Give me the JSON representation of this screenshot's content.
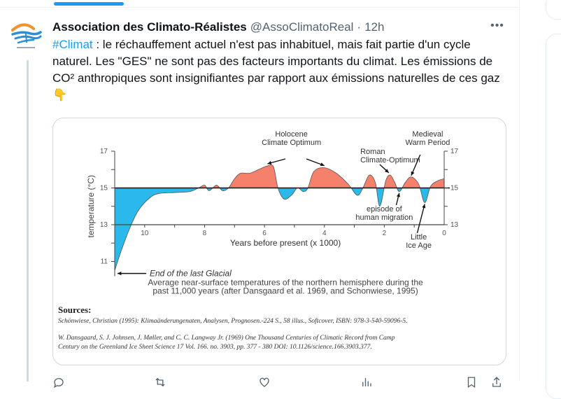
{
  "tweet": {
    "author_name": "Association des Climato-Réalistes",
    "handle": "@AssoClimatoReal",
    "separator": "·",
    "time": "12h",
    "more_label": "•••",
    "hashtag": "#Climat",
    "text_after_hashtag": " : le réchauffement actuel n'est pas inhabituel, mais fait partie d'un cycle naturel. Les \"GES\" ne sont pas des facteurs importants du climat. Les émissions de CO² anthropiques sont insignifiantes par rapport aux émissions naturelles de ces gaz",
    "emoji": "👇",
    "avatar_icon": "wave-sun-logo"
  },
  "colors": {
    "accent": "#1d9bf0",
    "warm_fill": "#f5806b",
    "cold_fill": "#2bb8ea",
    "text_secondary": "#536471"
  },
  "chart_data": {
    "type": "area",
    "title": "Average near-surface temperatures of the northern hemisphere during the past 11,000 years (after Dansgaard et al. 1969, and Schonwiese, 1995)",
    "caption_lines": [
      "Average near-surface temperatures of the northern hemisphere during the",
      "past 11,000 years (after Dansgaard et al. 1969, and Schonwiese, 1995)"
    ],
    "xlabel": "Years before present (x 1000)",
    "ylabel": "temperature (°C)",
    "xlim": [
      11,
      0
    ],
    "ylim": [
      10.5,
      17
    ],
    "baseline": 15,
    "x_ticks": [
      "10",
      "8",
      "6",
      "4",
      "2",
      "0"
    ],
    "y_ticks_left": [
      "17",
      "15",
      "13",
      "11"
    ],
    "y_ticks_right": [
      "17",
      "15",
      "13"
    ],
    "x": [
      11.0,
      10.8,
      10.5,
      10.2,
      9.8,
      9.5,
      9.0,
      8.5,
      8.2,
      8.0,
      7.85,
      7.6,
      7.4,
      7.2,
      7.0,
      6.8,
      6.5,
      6.2,
      5.9,
      5.7,
      5.55,
      5.35,
      5.1,
      4.9,
      4.7,
      4.55,
      4.35,
      4.0,
      3.6,
      3.2,
      2.9,
      2.7,
      2.5,
      2.3,
      2.15,
      1.95,
      1.8,
      1.65,
      1.5,
      1.3,
      1.1,
      0.85,
      0.65,
      0.45,
      0.2,
      0.0
    ],
    "y": [
      10.5,
      11.5,
      12.8,
      13.8,
      14.5,
      14.7,
      14.75,
      14.8,
      15.0,
      15.15,
      14.85,
      15.15,
      14.85,
      15.0,
      15.5,
      15.8,
      15.8,
      16.0,
      16.2,
      16.15,
      15.0,
      14.4,
      14.6,
      15.0,
      14.8,
      15.0,
      15.9,
      16.1,
      15.8,
      15.2,
      14.6,
      15.05,
      15.7,
      15.3,
      14.0,
      15.4,
      15.7,
      15.3,
      14.8,
      15.3,
      15.6,
      15.2,
      14.2,
      15.1,
      15.4,
      15.5
    ],
    "annotations": [
      {
        "lines": [
          "Holocene",
          "Climate Optimum"
        ],
        "x": [
          5.9,
          3.9
        ]
      },
      {
        "lines": [
          "Roman",
          "Climate-Optimum"
        ],
        "x": [
          1.8
        ]
      },
      {
        "lines": [
          "Medieval",
          "Warm Period"
        ],
        "x": [
          1.1
        ]
      },
      {
        "lines": [
          "episode of",
          "human migration"
        ],
        "x": [
          1.5
        ]
      },
      {
        "lines": [
          "Little",
          "Ice Age"
        ],
        "x": [
          0.65
        ]
      },
      {
        "lines": [
          "End of the last Glacial"
        ],
        "x": [
          11.0
        ]
      }
    ]
  },
  "sources": {
    "title": "Sources:",
    "ref1": "Schönwiese, Christian (1995): Klimaänderungenaten, Analysen, Prognosen.-224 S., 58 illus., Softcover, ISBN: 978-3-540-59096-5.",
    "ref2_line1": "W. Dansgaard, S. J. Johnsen, J. Møller, and C. C. Langway Jr. (1969) One Thousand Centuries of Climatic Record from Camp",
    "ref2_line2": "Century on the Greenland Ice Sheet Science 17 Vol. 166. no. 3903, pp. 377 - 380 DOI: 10.1126/science.166.3903.377."
  }
}
